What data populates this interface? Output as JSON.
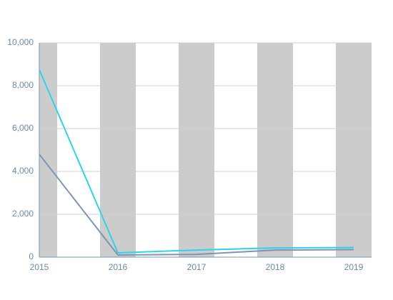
{
  "chart_data": {
    "type": "line",
    "categories": [
      "2015",
      "2016",
      "2017",
      "2018",
      "2019"
    ],
    "series": [
      {
        "color": "#2dd3ee",
        "values": [
          8750,
          200,
          330,
          430,
          450
        ]
      },
      {
        "color": "#7e96b2",
        "values": [
          4800,
          100,
          130,
          330,
          350
        ]
      }
    ],
    "ylim": [
      0,
      10000
    ],
    "yticks": [
      0,
      {
        "value": 2000,
        "label": "2,000"
      },
      {
        "value": 4000,
        "label": "4,000"
      },
      {
        "value": 6000,
        "label": "6,000"
      },
      {
        "value": 8000,
        "label": "8,000"
      },
      {
        "value": 10000,
        "label": "10,000"
      }
    ],
    "grid": true,
    "band_color": "#cccccc"
  }
}
